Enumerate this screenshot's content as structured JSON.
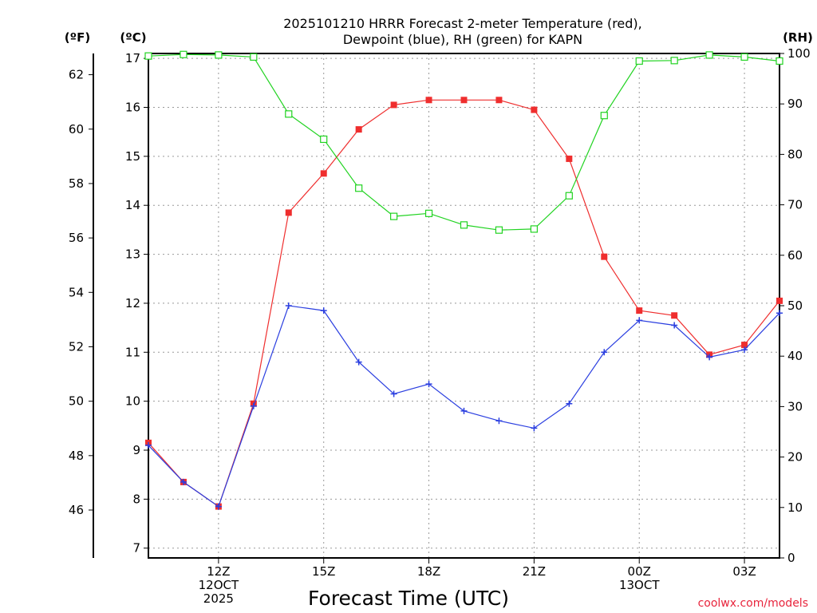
{
  "chart_data": {
    "type": "line",
    "title_line1": "2025101210 HRRR Forecast 2-meter Temperature (red),",
    "title_line2": "Dewpoint (blue), RH (green) for KAPN",
    "xlabel": "Forecast Time (UTC)",
    "credit": "coolwx.com/models",
    "left_unit_f": "(ºF)",
    "left_unit_c": "(ºC)",
    "right_unit": "(RH)",
    "x_hours": [
      10,
      11,
      12,
      13,
      14,
      15,
      16,
      17,
      18,
      19,
      20,
      21,
      22,
      23,
      24,
      25,
      26,
      27,
      28
    ],
    "xlim": [
      10,
      28
    ],
    "x_ticks": [
      {
        "hour": 12,
        "lines": [
          "12Z",
          "12OCT",
          "2025"
        ]
      },
      {
        "hour": 15,
        "lines": [
          "15Z"
        ]
      },
      {
        "hour": 18,
        "lines": [
          "18Z"
        ]
      },
      {
        "hour": 21,
        "lines": [
          "21Z"
        ]
      },
      {
        "hour": 24,
        "lines": [
          "00Z",
          "13OCT"
        ]
      },
      {
        "hour": 27,
        "lines": [
          "03Z"
        ]
      }
    ],
    "ylim_c": [
      6.8,
      17.1
    ],
    "y_ticks_c": [
      7,
      8,
      9,
      10,
      11,
      12,
      13,
      14,
      15,
      16,
      17
    ],
    "y_ticks_f": [
      46,
      48,
      50,
      52,
      54,
      56,
      58,
      60,
      62
    ],
    "ylim_rh": [
      0,
      100
    ],
    "y_ticks_rh": [
      0,
      10,
      20,
      30,
      40,
      50,
      60,
      70,
      80,
      90,
      100
    ],
    "series": [
      {
        "name": "Temperature",
        "color": "#ef2e2e",
        "axis": "c",
        "marker": "filled-square",
        "values": [
          9.15,
          8.35,
          7.85,
          9.95,
          13.85,
          14.65,
          15.55,
          16.05,
          16.15,
          16.15,
          16.15,
          15.95,
          14.95,
          12.95,
          11.85,
          11.75,
          10.95,
          11.15,
          12.05
        ]
      },
      {
        "name": "Dewpoint",
        "color": "#2b3fe0",
        "axis": "c",
        "marker": "plus",
        "values": [
          9.1,
          8.35,
          7.85,
          9.9,
          11.95,
          11.85,
          10.8,
          10.15,
          10.35,
          9.8,
          9.6,
          9.45,
          9.95,
          11.0,
          11.65,
          11.55,
          10.9,
          11.05,
          11.8
        ]
      },
      {
        "name": "RH",
        "color": "#21d321",
        "axis": "rh",
        "marker": "open-square",
        "values": [
          99.5,
          99.8,
          99.7,
          99.3,
          88.0,
          83.0,
          73.3,
          67.7,
          68.3,
          66.0,
          65.0,
          65.2,
          71.8,
          87.7,
          98.5,
          98.6,
          99.7,
          99.3,
          98.5
        ]
      }
    ]
  }
}
